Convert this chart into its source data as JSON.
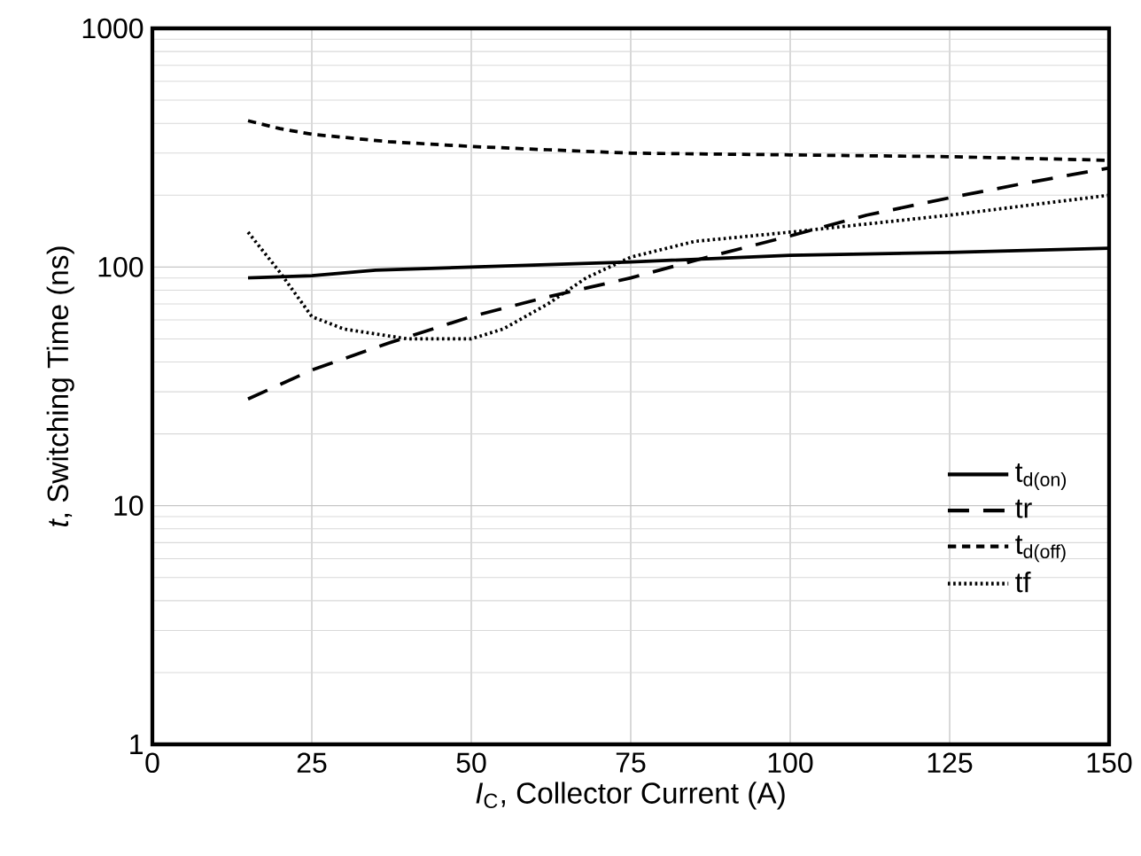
{
  "chart_data": {
    "type": "line",
    "xlabel": "*I*$_{C}$, Collector Current (A)",
    "ylabel": "*t*, Switching Time (ns)",
    "log": "y",
    "grid": true,
    "legend": "right",
    "xlim": [
      0,
      150
    ],
    "xticks": [
      0,
      25,
      50,
      75,
      100,
      125,
      150
    ],
    "ylim": [
      1,
      1000
    ],
    "yticks": [
      1,
      10,
      100,
      1000
    ],
    "series": [
      {
        "name": "t$_{d(on)}$",
        "color": "#000000",
        "line_style": "solid",
        "x": [
          15,
          25,
          35,
          50,
          75,
          100,
          125,
          150
        ],
        "values": [
          90,
          92,
          97,
          100,
          105,
          112,
          115,
          120
        ]
      },
      {
        "name": "tr",
        "color": "#000000",
        "line_style": "dashed",
        "x": [
          15,
          25,
          37,
          50,
          62,
          75,
          87,
          100,
          112,
          125,
          137,
          150
        ],
        "values": [
          28,
          37,
          48,
          62,
          75,
          90,
          110,
          135,
          165,
          195,
          225,
          260
        ]
      },
      {
        "name": "t$_{d(off)}$",
        "color": "#000000",
        "line_style": "dashed",
        "x": [
          15,
          20,
          25,
          37,
          50,
          62,
          75,
          100,
          125,
          150
        ],
        "values": [
          410,
          380,
          360,
          335,
          320,
          310,
          300,
          295,
          290,
          280
        ]
      },
      {
        "name": "tf",
        "color": "#000000",
        "line_style": "dotted",
        "x": [
          15,
          20,
          25,
          30,
          40,
          50,
          55,
          62,
          68,
          75,
          85,
          100,
          125,
          150
        ],
        "values": [
          140,
          95,
          62,
          55,
          50,
          50,
          55,
          70,
          90,
          110,
          128,
          140,
          165,
          200
        ]
      }
    ]
  }
}
